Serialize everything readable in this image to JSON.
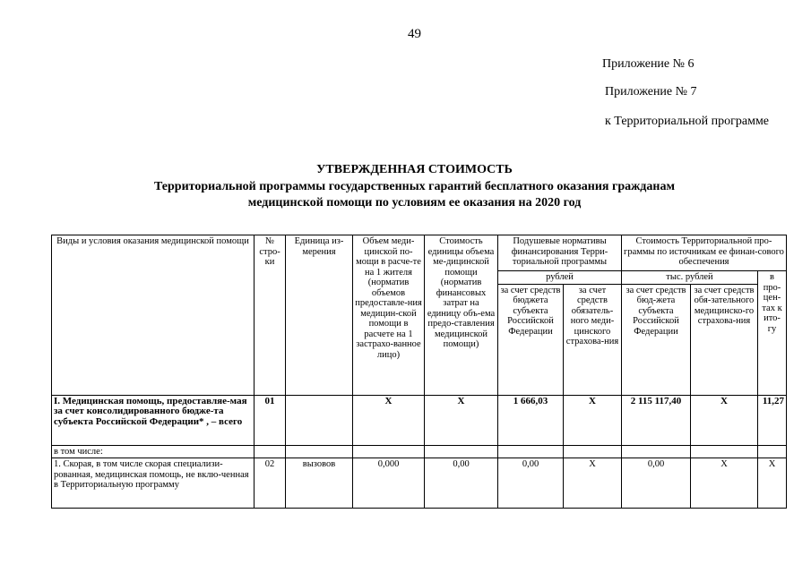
{
  "page_number": "49",
  "appendix": [
    "Приложение № 6",
    "Приложение № 7",
    "к Территориальной программе"
  ],
  "title": {
    "line1": "УТВЕРЖДЕННАЯ СТОИМОСТЬ",
    "line2": "Территориальной программы государственных гарантий бесплатного оказания гражданам",
    "line3": "медицинской помощи по условиям ее оказания на 2020 год"
  },
  "table": {
    "headers": {
      "kind": "Виды и условия оказания медицинской помощи",
      "row_no": "№ стро-ки",
      "unit": "Единица из-мерения",
      "volume": "Объем меди-цинской по-мощи в расче-те на 1 жителя (норматив объемов предоставле-ния медицин-ской помощи в расчете на 1 застрахо-ванное лицо)",
      "unit_cost": "Стоимость единицы объема ме-дицинской помощи (норматив финансовых затрат на единицу объ-ема предо-ставления медицинской помощи)",
      "per_capita": "Подушевые нормативы финансирования Терри-ториальной программы",
      "program_cost": "Стоимость Территориальной про-граммы по источникам ее финан-сового обеспечения",
      "rubles": "рублей",
      "thousand_rubles": "тыс. рублей",
      "percent": "в про-цен-тах к ито-гу",
      "pc_budget": "за счет средств бюджета субъекта Российской Федерации",
      "pc_oms": "за счет средств обязатель-ного меди-цинского страхова-ния",
      "cost_budget": "за счет средств бюд-жета субъекта Российской Федерации",
      "cost_oms": "за счет средств обя-зательного медицинско-го страхова-ния"
    },
    "rows": [
      {
        "kind": "I. Медицинская помощь, предоставляе-мая за счет консолидированного бюдже-та субъекта Российской Федерации* , – всего",
        "no": "01",
        "unit": "",
        "volume": "X",
        "unit_cost": "X",
        "pc_budget": "1 666,03",
        "pc_oms": "X",
        "cost_budget": "2 115 117,40",
        "cost_oms": "X",
        "percent": "11,27"
      },
      {
        "kind": "в том числе:",
        "no": "",
        "unit": "",
        "volume": "",
        "unit_cost": "",
        "pc_budget": "",
        "pc_oms": "",
        "cost_budget": "",
        "cost_oms": "",
        "percent": ""
      },
      {
        "kind": "1. Скорая, в том числе скорая специализи-рованная, медицинская помощь, не вклю-ченная в Территориальную программу",
        "no": "02",
        "unit": "вызовов",
        "volume": "0,000",
        "unit_cost": "0,00",
        "pc_budget": "0,00",
        "pc_oms": "X",
        "cost_budget": "0,00",
        "cost_oms": "X",
        "percent": "X"
      }
    ]
  }
}
